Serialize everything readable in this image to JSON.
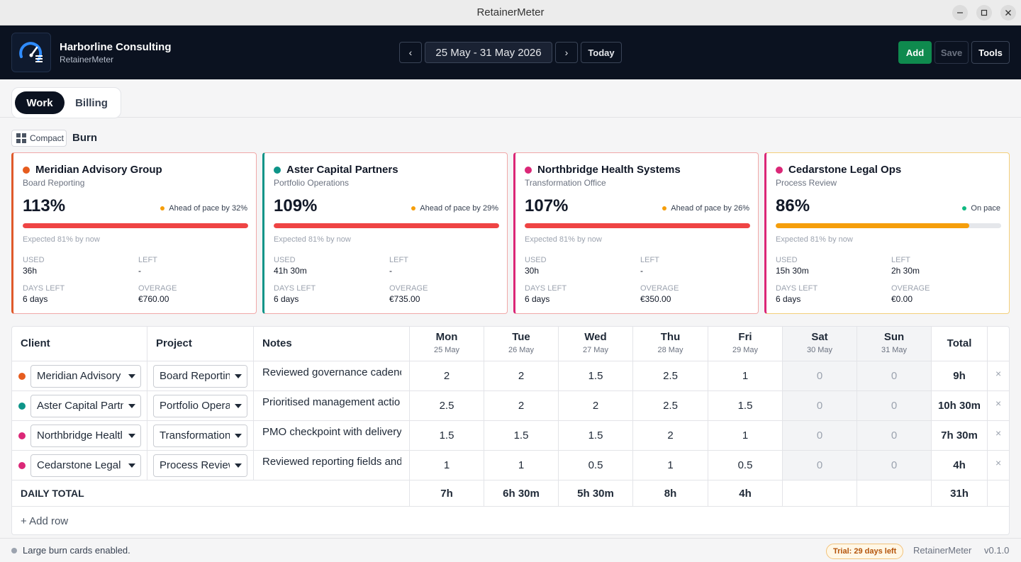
{
  "window": {
    "title": "RetainerMeter"
  },
  "header": {
    "org_name": "Harborline Consulting",
    "org_sub": "RetainerMeter",
    "prev_label": "‹",
    "next_label": "›",
    "date_range": "25 May - 31 May 2026",
    "today_label": "Today",
    "add_label": "Add",
    "save_label": "Save",
    "tools_label": "Tools",
    "add_color": "#0f8a4e"
  },
  "tabs": [
    {
      "label": "Work",
      "active": true
    },
    {
      "label": "Billing",
      "active": false
    }
  ],
  "burn": {
    "compact_label": "Compact",
    "title": "Burn",
    "cards": [
      {
        "client": "Meridian Advisory Group",
        "project": "Board Reporting",
        "dot_color": "#e65c1e",
        "percent": "113%",
        "pace_text": "Ahead of pace by 32%",
        "pace_color": "#f59e0b",
        "fill": 1.0,
        "fill_color": "#ef4444",
        "border_color": "#e05a2b",
        "expected": "Expected 81% by now",
        "used_label": "USED",
        "used": "36h",
        "left_label": "LEFT",
        "left": "-",
        "days_left_label": "DAYS LEFT",
        "days_left": "6 days",
        "overage_label": "OVERAGE",
        "overage": "€760.00"
      },
      {
        "client": "Aster Capital Partners",
        "project": "Portfolio Operations",
        "dot_color": "#0d9488",
        "percent": "109%",
        "pace_text": "Ahead of pace by 29%",
        "pace_color": "#f59e0b",
        "fill": 1.0,
        "fill_color": "#ef4444",
        "border_color": "#0d9488",
        "expected": "Expected 81% by now",
        "used_label": "USED",
        "used": "41h 30m",
        "left_label": "LEFT",
        "left": "-",
        "days_left_label": "DAYS LEFT",
        "days_left": "6 days",
        "overage_label": "OVERAGE",
        "overage": "€735.00"
      },
      {
        "client": "Northbridge Health Systems",
        "project": "Transformation Office",
        "dot_color": "#db2777",
        "percent": "107%",
        "pace_text": "Ahead of pace by 26%",
        "pace_color": "#f59e0b",
        "fill": 1.0,
        "fill_color": "#ef4444",
        "border_color": "#db2777",
        "expected": "Expected 81% by now",
        "used_label": "USED",
        "used": "30h",
        "left_label": "LEFT",
        "left": "-",
        "days_left_label": "DAYS LEFT",
        "days_left": "6 days",
        "overage_label": "OVERAGE",
        "overage": "€350.00"
      },
      {
        "client": "Cedarstone Legal Ops",
        "project": "Process Review",
        "dot_color": "#db2777",
        "percent": "86%",
        "pace_text": "On pace",
        "pace_color": "#10b981",
        "fill": 0.86,
        "fill_color": "#f59e0b",
        "border_color": "#db2777",
        "expected": "Expected 81% by now",
        "used_label": "USED",
        "used": "15h 30m",
        "left_label": "LEFT",
        "left": "2h 30m",
        "days_left_label": "DAYS LEFT",
        "days_left": "6 days",
        "overage_label": "OVERAGE",
        "overage": "€0.00"
      }
    ]
  },
  "table": {
    "headers": {
      "client": "Client",
      "project": "Project",
      "notes": "Notes",
      "total": "Total"
    },
    "days": [
      {
        "name": "Mon",
        "date": "25 May"
      },
      {
        "name": "Tue",
        "date": "26 May"
      },
      {
        "name": "Wed",
        "date": "27 May"
      },
      {
        "name": "Thu",
        "date": "28 May"
      },
      {
        "name": "Fri",
        "date": "29 May"
      },
      {
        "name": "Sat",
        "date": "30 May"
      },
      {
        "name": "Sun",
        "date": "31 May"
      }
    ],
    "rows": [
      {
        "dot_color": "#e65c1e",
        "client": "Meridian Advisory",
        "project": "Board Reportin",
        "note": "Reviewed governance cadence",
        "hours": [
          "2",
          "2",
          "1.5",
          "2.5",
          "1",
          "0",
          "0"
        ],
        "total": "9h"
      },
      {
        "dot_color": "#0d9488",
        "client": "Aster Capital Partn",
        "project": "Portfolio Opera",
        "note": "Prioritised management actio",
        "hours": [
          "2.5",
          "2",
          "2",
          "2.5",
          "1.5",
          "0",
          "0"
        ],
        "total": "10h 30m"
      },
      {
        "dot_color": "#db2777",
        "client": "Northbridge Healtl",
        "project": "Transformation",
        "note": "PMO checkpoint with delivery",
        "hours": [
          "1.5",
          "1.5",
          "1.5",
          "2",
          "1",
          "0",
          "0"
        ],
        "total": "7h 30m"
      },
      {
        "dot_color": "#db2777",
        "client": "Cedarstone Legal (",
        "project": "Process Review",
        "note": "Reviewed reporting fields and",
        "hours": [
          "1",
          "1",
          "0.5",
          "1",
          "0.5",
          "0",
          "0"
        ],
        "total": "4h"
      }
    ],
    "daily_total_label": "DAILY TOTAL",
    "daily_totals": [
      "7h",
      "6h 30m",
      "5h 30m",
      "8h",
      "4h",
      "",
      ""
    ],
    "grand_total": "31h",
    "delete_glyph": "×",
    "add_row_label": "+ Add row"
  },
  "status": {
    "message": "Large burn cards enabled.",
    "trial": "Trial: 29 days left",
    "app_name": "RetainerMeter",
    "version": "v0.1.0"
  }
}
